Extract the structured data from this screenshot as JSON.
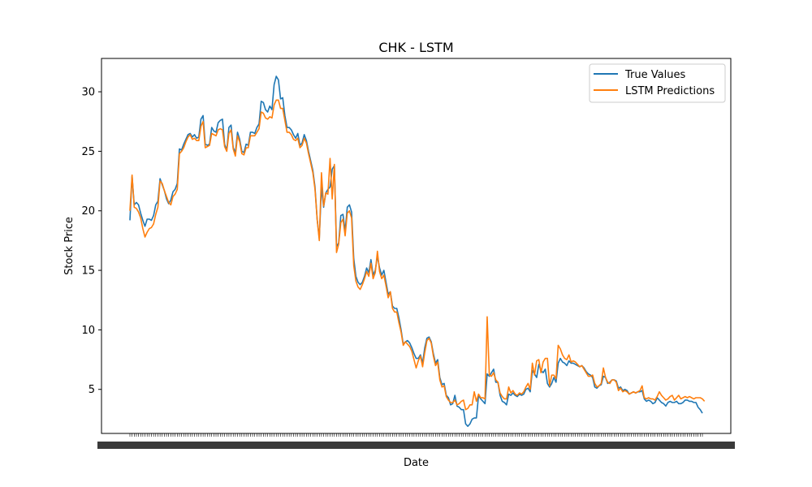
{
  "chart_data": {
    "type": "line",
    "title": "CHK - LSTM",
    "xlabel": "Date",
    "ylabel": "Stock Price",
    "ylim": [
      1.3,
      32.8
    ],
    "y_ticks": [
      5,
      10,
      15,
      20,
      25,
      30
    ],
    "grid": false,
    "legend_position": "top-right",
    "series": [
      {
        "name": "True Values",
        "color": "#1f77b4",
        "values": [
          19.2,
          22.9,
          20.5,
          20.7,
          20.5,
          19.8,
          19.2,
          18.7,
          19.3,
          19.3,
          19.2,
          19.6,
          20.5,
          20.8,
          22.7,
          22.2,
          21.7,
          21.0,
          20.6,
          20.9,
          21.6,
          21.8,
          22.3,
          25.2,
          25.1,
          25.6,
          26.0,
          26.4,
          26.5,
          26.2,
          26.4,
          26.1,
          26.2,
          27.7,
          28.0,
          25.6,
          25.5,
          25.6,
          27.0,
          26.7,
          26.6,
          27.4,
          27.6,
          27.7,
          25.6,
          25.1,
          27.0,
          27.2,
          25.3,
          24.9,
          26.6,
          26.0,
          25.0,
          24.9,
          25.6,
          25.5,
          26.6,
          26.6,
          26.5,
          27.0,
          27.3,
          29.2,
          29.1,
          28.5,
          28.3,
          28.8,
          28.5,
          30.6,
          31.3,
          31.0,
          29.4,
          29.5,
          28.0,
          27.0,
          27.0,
          26.8,
          26.4,
          26.1,
          26.5,
          25.5,
          25.7,
          26.4,
          25.9,
          25.0,
          24.2,
          23.4,
          22.0,
          19.3,
          17.7,
          22.0,
          20.3,
          21.5,
          21.8,
          22.0,
          23.5,
          23.8,
          17.0,
          17.3,
          19.6,
          19.7,
          18.3,
          20.3,
          20.5,
          19.9,
          16.0,
          14.5,
          14.0,
          13.8,
          14.0,
          14.5,
          15.2,
          14.8,
          15.9,
          14.6,
          15.0,
          16.2,
          15.2,
          14.6,
          15.0,
          14.0,
          13.0,
          13.2,
          12.0,
          11.8,
          11.8,
          11.0,
          10.0,
          8.8,
          9.0,
          9.1,
          8.9,
          8.5,
          8.0,
          7.6,
          7.6,
          7.9,
          7.2,
          8.5,
          9.3,
          9.4,
          9.0,
          8.0,
          7.2,
          7.5,
          6.0,
          5.4,
          5.5,
          4.5,
          4.3,
          3.7,
          3.8,
          4.5,
          3.6,
          3.5,
          3.3,
          3.3,
          2.1,
          1.9,
          2.1,
          2.5,
          2.6,
          2.6,
          4.5,
          4.2,
          4.0,
          3.8,
          6.3,
          6.1,
          6.4,
          6.7,
          5.6,
          5.6,
          4.5,
          4.0,
          3.9,
          3.7,
          4.6,
          4.5,
          4.7,
          4.5,
          4.4,
          4.6,
          4.5,
          4.6,
          5.0,
          5.1,
          4.8,
          6.6,
          6.3,
          6.0,
          7.1,
          6.6,
          6.4,
          6.7,
          5.5,
          5.2,
          5.5,
          6.0,
          5.6,
          7.2,
          7.6,
          7.3,
          7.2,
          7.0,
          7.4,
          7.2,
          7.2,
          7.1,
          7.0,
          6.9,
          7.0,
          6.8,
          6.5,
          6.3,
          6.2,
          6.0,
          5.2,
          5.1,
          5.3,
          5.4,
          6.1,
          6.0,
          5.5,
          5.6,
          5.8,
          5.8,
          5.7,
          5.1,
          5.2,
          4.9,
          5.0,
          4.9,
          4.6,
          4.7,
          4.8,
          4.7,
          4.8,
          4.8,
          4.9,
          4.2,
          4.0,
          4.1,
          4.0,
          3.8,
          3.9,
          4.3,
          4.1,
          3.9,
          3.8,
          3.6,
          3.9,
          4.0,
          3.9,
          3.9,
          4.0,
          3.8,
          3.8,
          3.9,
          4.1,
          4.1,
          4.0,
          4.0,
          3.9,
          3.9,
          3.5,
          3.3,
          3.0
        ]
      },
      {
        "name": "LSTM Predictions",
        "color": "#ff7f0e",
        "values": [
          20.0,
          23.0,
          20.3,
          20.2,
          19.9,
          19.4,
          18.5,
          17.8,
          18.2,
          18.5,
          18.6,
          18.9,
          19.7,
          20.3,
          22.5,
          22.3,
          21.7,
          21.2,
          20.7,
          20.5,
          21.2,
          21.4,
          21.8,
          24.8,
          25.0,
          25.3,
          25.8,
          26.2,
          26.4,
          26.0,
          26.1,
          25.9,
          25.9,
          27.1,
          27.5,
          25.3,
          25.4,
          25.5,
          26.5,
          26.4,
          26.3,
          26.8,
          26.9,
          26.8,
          25.4,
          25.0,
          26.5,
          26.8,
          25.2,
          24.6,
          26.3,
          25.8,
          24.8,
          24.7,
          25.3,
          25.3,
          26.3,
          26.3,
          26.3,
          26.6,
          26.9,
          28.3,
          28.2,
          27.8,
          27.7,
          27.9,
          27.8,
          28.9,
          29.3,
          29.3,
          28.6,
          28.6,
          27.6,
          26.6,
          26.6,
          26.4,
          26.0,
          25.9,
          26.1,
          25.3,
          25.5,
          26.1,
          25.7,
          24.8,
          24.0,
          23.2,
          21.8,
          19.3,
          17.5,
          23.2,
          20.4,
          21.5,
          21.4,
          24.4,
          21.0,
          23.9,
          16.5,
          17.2,
          19.0,
          19.3,
          17.9,
          19.8,
          20.0,
          19.4,
          15.4,
          14.1,
          13.6,
          13.4,
          13.8,
          14.3,
          14.9,
          14.5,
          15.6,
          14.3,
          14.8,
          16.6,
          14.9,
          14.3,
          14.6,
          13.7,
          12.7,
          13.2,
          11.8,
          11.5,
          11.5,
          10.6,
          9.8,
          8.7,
          9.0,
          8.8,
          8.6,
          8.2,
          7.5,
          6.8,
          7.4,
          7.8,
          6.9,
          8.1,
          9.1,
          9.3,
          8.9,
          7.8,
          7.0,
          7.3,
          5.8,
          5.2,
          5.3,
          4.4,
          4.1,
          3.9,
          3.9,
          4.1,
          3.7,
          3.8,
          4.0,
          4.1,
          3.3,
          3.4,
          3.7,
          3.7,
          4.8,
          4.0,
          4.6,
          4.3,
          4.3,
          4.2,
          11.1,
          6.2,
          6.1,
          6.4,
          5.8,
          5.6,
          4.7,
          4.4,
          4.2,
          4.2,
          5.2,
          4.7,
          4.9,
          4.6,
          4.5,
          4.7,
          4.6,
          4.8,
          5.2,
          5.5,
          5.0,
          7.2,
          6.2,
          7.4,
          7.5,
          6.4,
          7.3,
          7.6,
          7.6,
          5.3,
          6.2,
          6.2,
          5.9,
          8.7,
          8.4,
          7.9,
          7.6,
          7.5,
          7.9,
          7.3,
          7.4,
          7.3,
          7.1,
          6.9,
          7.0,
          6.7,
          6.4,
          6.1,
          6.1,
          6.2,
          5.5,
          5.2,
          5.3,
          5.5,
          6.8,
          6.0,
          5.6,
          5.5,
          5.8,
          5.8,
          5.6,
          4.9,
          5.1,
          4.8,
          4.9,
          4.8,
          4.6,
          4.7,
          4.8,
          4.7,
          4.8,
          4.9,
          5.3,
          4.3,
          4.2,
          4.3,
          4.2,
          4.2,
          4.1,
          4.4,
          4.8,
          4.5,
          4.3,
          4.1,
          4.2,
          4.4,
          4.5,
          4.1,
          4.3,
          4.5,
          4.2,
          4.3,
          4.4,
          4.3,
          4.4,
          4.3,
          4.2,
          4.3,
          4.3,
          4.3,
          4.2,
          4.0
        ]
      }
    ]
  }
}
